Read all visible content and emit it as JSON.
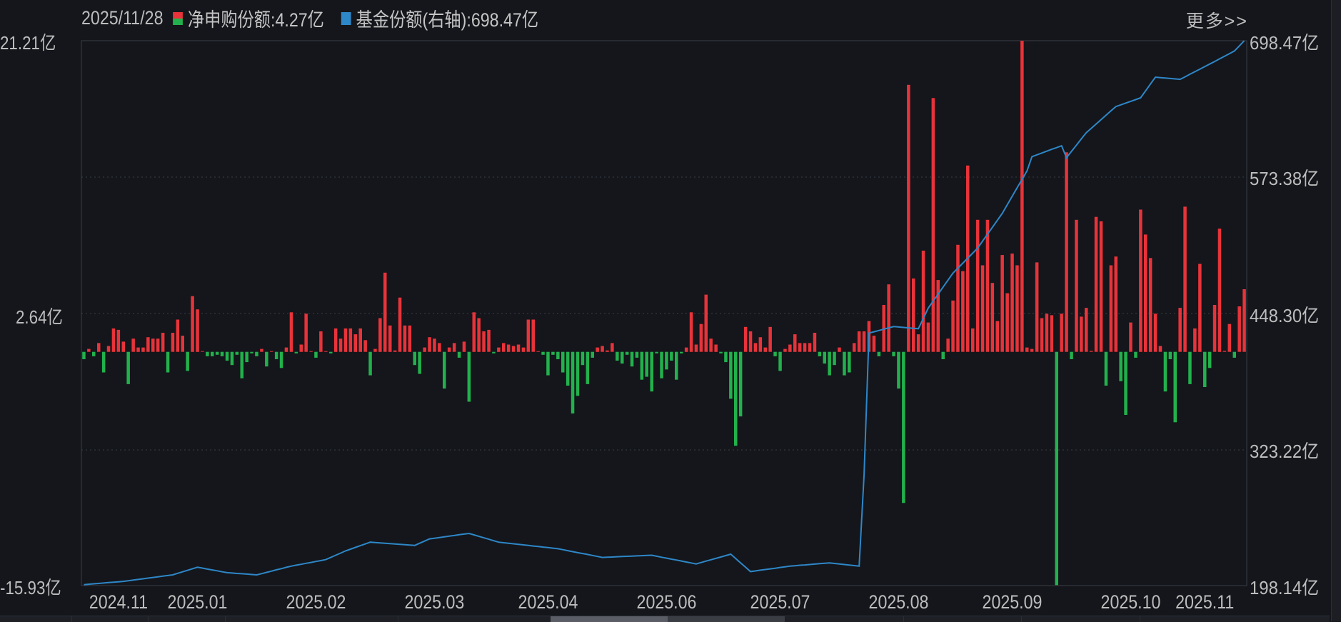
{
  "header": {
    "date": "2025/11/28",
    "series1_label": "净申购份额:4.27亿",
    "series2_label": "基金份额(右轴):698.47亿",
    "more_link": "更多>>"
  },
  "colors": {
    "positive": "#e8333a",
    "negative": "#22b14c",
    "line": "#2e87c8",
    "background": "#14161b",
    "grid": "#3a3d44"
  },
  "chart_data": {
    "type": "bar+line",
    "left_axis": {
      "ticks": [
        "21.21亿",
        "2.64亿",
        "-15.93亿"
      ],
      "range": [
        -15.93,
        21.21
      ],
      "unit": "亿"
    },
    "right_axis": {
      "ticks": [
        "698.47亿",
        "573.38亿",
        "448.30亿",
        "323.22亿",
        "198.14亿"
      ],
      "range": [
        198.14,
        698.47
      ],
      "unit": "亿"
    },
    "x_ticks": [
      "2024.11",
      "2025.01",
      "2025.02",
      "2025.03",
      "2025.04",
      "2025.06",
      "2025.07",
      "2025.08",
      "2025.09",
      "2025.10",
      "2025.11"
    ],
    "grid": "horizontal dotted",
    "series": [
      {
        "name": "净申购份额",
        "type": "bar",
        "axis": "left",
        "values": [
          -0.5,
          0.2,
          -0.3,
          0.6,
          -1.4,
          0.4,
          1.6,
          1.5,
          0.7,
          -2.2,
          0.9,
          0.3,
          0.3,
          1.0,
          0.9,
          0.9,
          1.3,
          -1.4,
          1.3,
          2.2,
          1.1,
          -1.3,
          3.8,
          2.9,
          0.05,
          -0.3,
          -0.3,
          -0.2,
          -0.3,
          -0.6,
          -0.9,
          -0.2,
          -1.8,
          -0.7,
          -0.1,
          -0.3,
          0.2,
          -1.0,
          0.05,
          -0.5,
          -1.1,
          0.3,
          2.7,
          -0.1,
          0.5,
          2.6,
          0.05,
          -0.4,
          1.4,
          0.05,
          -0.1,
          1.6,
          0.9,
          1.6,
          1.6,
          1.2,
          1.6,
          0.8,
          -1.6,
          0.2,
          2.3,
          5.4,
          1.8,
          0.1,
          3.7,
          1.8,
          1.8,
          -0.9,
          -1.5,
          0.3,
          1.0,
          0.9,
          0.6,
          -2.5,
          0.3,
          0.6,
          -0.4,
          0.7,
          -3.4,
          2.7,
          2.3,
          1.4,
          1.5,
          -0.1,
          0.3,
          0.6,
          0.5,
          0.4,
          0.5,
          0.3,
          2.2,
          2.2,
          0.05,
          -0.2,
          -1.6,
          -0.2,
          -0.5,
          -1.4,
          -2.3,
          -4.2,
          -3.0,
          -0.9,
          -2.2,
          -0.4,
          0.3,
          0.4,
          0.1,
          0.6,
          -0.6,
          -0.8,
          -0.2,
          -1.0,
          -0.4,
          -1.9,
          -1.7,
          -2.7,
          -0.1,
          -1.8,
          -1.2,
          -0.6,
          -1.9,
          -0.1,
          0.3,
          2.7,
          0.5,
          1.9,
          3.9,
          0.9,
          0.5,
          -0.1,
          -0.7,
          -3.2,
          -6.4,
          -4.4,
          1.7,
          1.4,
          0.6,
          1.0,
          0.3,
          1.7,
          -0.3,
          -1.3,
          0.2,
          0.5,
          1.2,
          0.6,
          0.6,
          0.6,
          1.3,
          -0.3,
          -0.8,
          -1.6,
          -0.9,
          0.3,
          -1.6,
          -1.4,
          0.6,
          1.4,
          1.4,
          2.1,
          1.1,
          -0.3,
          3.2,
          4.6,
          -0.3,
          -2.5,
          -10.3,
          18.2,
          5.0,
          1.2,
          6.9,
          2.0,
          17.3,
          4.9,
          -0.5,
          0.9,
          3.5,
          7.3,
          5.5,
          12.7,
          1.6,
          9.0,
          5.9,
          9.0,
          4.7,
          2.1,
          6.6,
          4.0,
          6.7,
          5.9,
          21.2,
          0.3,
          0.2,
          6.1,
          2.3,
          2.6,
          2.5,
          -15.9,
          2.6,
          13.6,
          -0.5,
          9.0,
          2.4,
          3.0,
          0.07,
          9.2,
          8.9,
          -2.3,
          5.9,
          6.5,
          -2.0,
          -4.3,
          2.0,
          -0.4,
          9.7,
          8.0,
          6.4,
          2.6,
          0.4,
          -2.7,
          -0.5,
          -4.8,
          3.0,
          9.9,
          -2.2,
          1.6,
          6.0,
          -2.4,
          -1.1,
          3.2,
          8.4,
          0.07,
          1.9,
          -0.4,
          3.1,
          4.27
        ]
      },
      {
        "name": "基金份额(右轴)",
        "type": "line",
        "axis": "right",
        "values": [
          199,
          199.4,
          199.8,
          200.1,
          200.5,
          200.9,
          201.2,
          201.6,
          202,
          202.6,
          203.2,
          203.8,
          204.4,
          205,
          205.6,
          206.2,
          206.8,
          207.4,
          208,
          209.4,
          210.8,
          212.2,
          213.6,
          215,
          214.2,
          213.3,
          212.5,
          211.7,
          210.8,
          210,
          209.7,
          209.3,
          209,
          208.7,
          208.3,
          208,
          209.1,
          210.3,
          211.4,
          212.6,
          213.7,
          214.9,
          216,
          216.9,
          217.7,
          218.6,
          219.4,
          220.3,
          221.1,
          222,
          224,
          226,
          228,
          230,
          231.6,
          233.2,
          234.8,
          236.4,
          238,
          237.7,
          237.3,
          237,
          236.7,
          236.3,
          236,
          235.7,
          235.3,
          235,
          237,
          239,
          241,
          241.6,
          242.3,
          242.9,
          243.5,
          244.1,
          244.8,
          245.4,
          246,
          244.7,
          243.3,
          242,
          240.7,
          239.3,
          238,
          237.5,
          237,
          236.5,
          236,
          235.5,
          235,
          234.5,
          234,
          233.5,
          233,
          232.5,
          232,
          231.1,
          230.2,
          229.3,
          228.4,
          227.6,
          226.7,
          225.8,
          224.9,
          224,
          224.2,
          224.4,
          224.6,
          224.8,
          225,
          225.2,
          225.4,
          225.6,
          225.8,
          226,
          225.1,
          224.2,
          223.3,
          222.4,
          221.6,
          220.7,
          219.8,
          218.9,
          218,
          219.3,
          220.6,
          221.9,
          223.1,
          224.4,
          225.7,
          227,
          223,
          219,
          215,
          211,
          211.6,
          212.3,
          212.9,
          213.5,
          214.1,
          214.8,
          215.4,
          216,
          216.4,
          216.8,
          217.1,
          217.5,
          217.9,
          218.3,
          218.6,
          219,
          218.5,
          218,
          217.5,
          217,
          216.5,
          216,
          300,
          430,
          431.2,
          432.4,
          433.6,
          434.8,
          436,
          435.6,
          435.2,
          434.8,
          434.4,
          434,
          443.5,
          453,
          459.4,
          465.8,
          472.2,
          478.6,
          485,
          489.6,
          494.2,
          498.8,
          503.4,
          508,
          514.4,
          520.8,
          527.2,
          533.6,
          540,
          547.8,
          555.6,
          563.4,
          571.2,
          579,
          592,
          593.7,
          595.3,
          597,
          598.7,
          600.3,
          602,
          591,
          596.8,
          602.5,
          608.3,
          614,
          618,
          622,
          626,
          630,
          634,
          638,
          639.6,
          641.2,
          642.8,
          644.4,
          646,
          652.3,
          658.7,
          665,
          664.6,
          664.2,
          663.8,
          663.4,
          663,
          665.3,
          667.7,
          670,
          672.3,
          674.7,
          677,
          679.4,
          681.8,
          684.2,
          686.6,
          689,
          693.7,
          698.47
        ]
      }
    ]
  }
}
